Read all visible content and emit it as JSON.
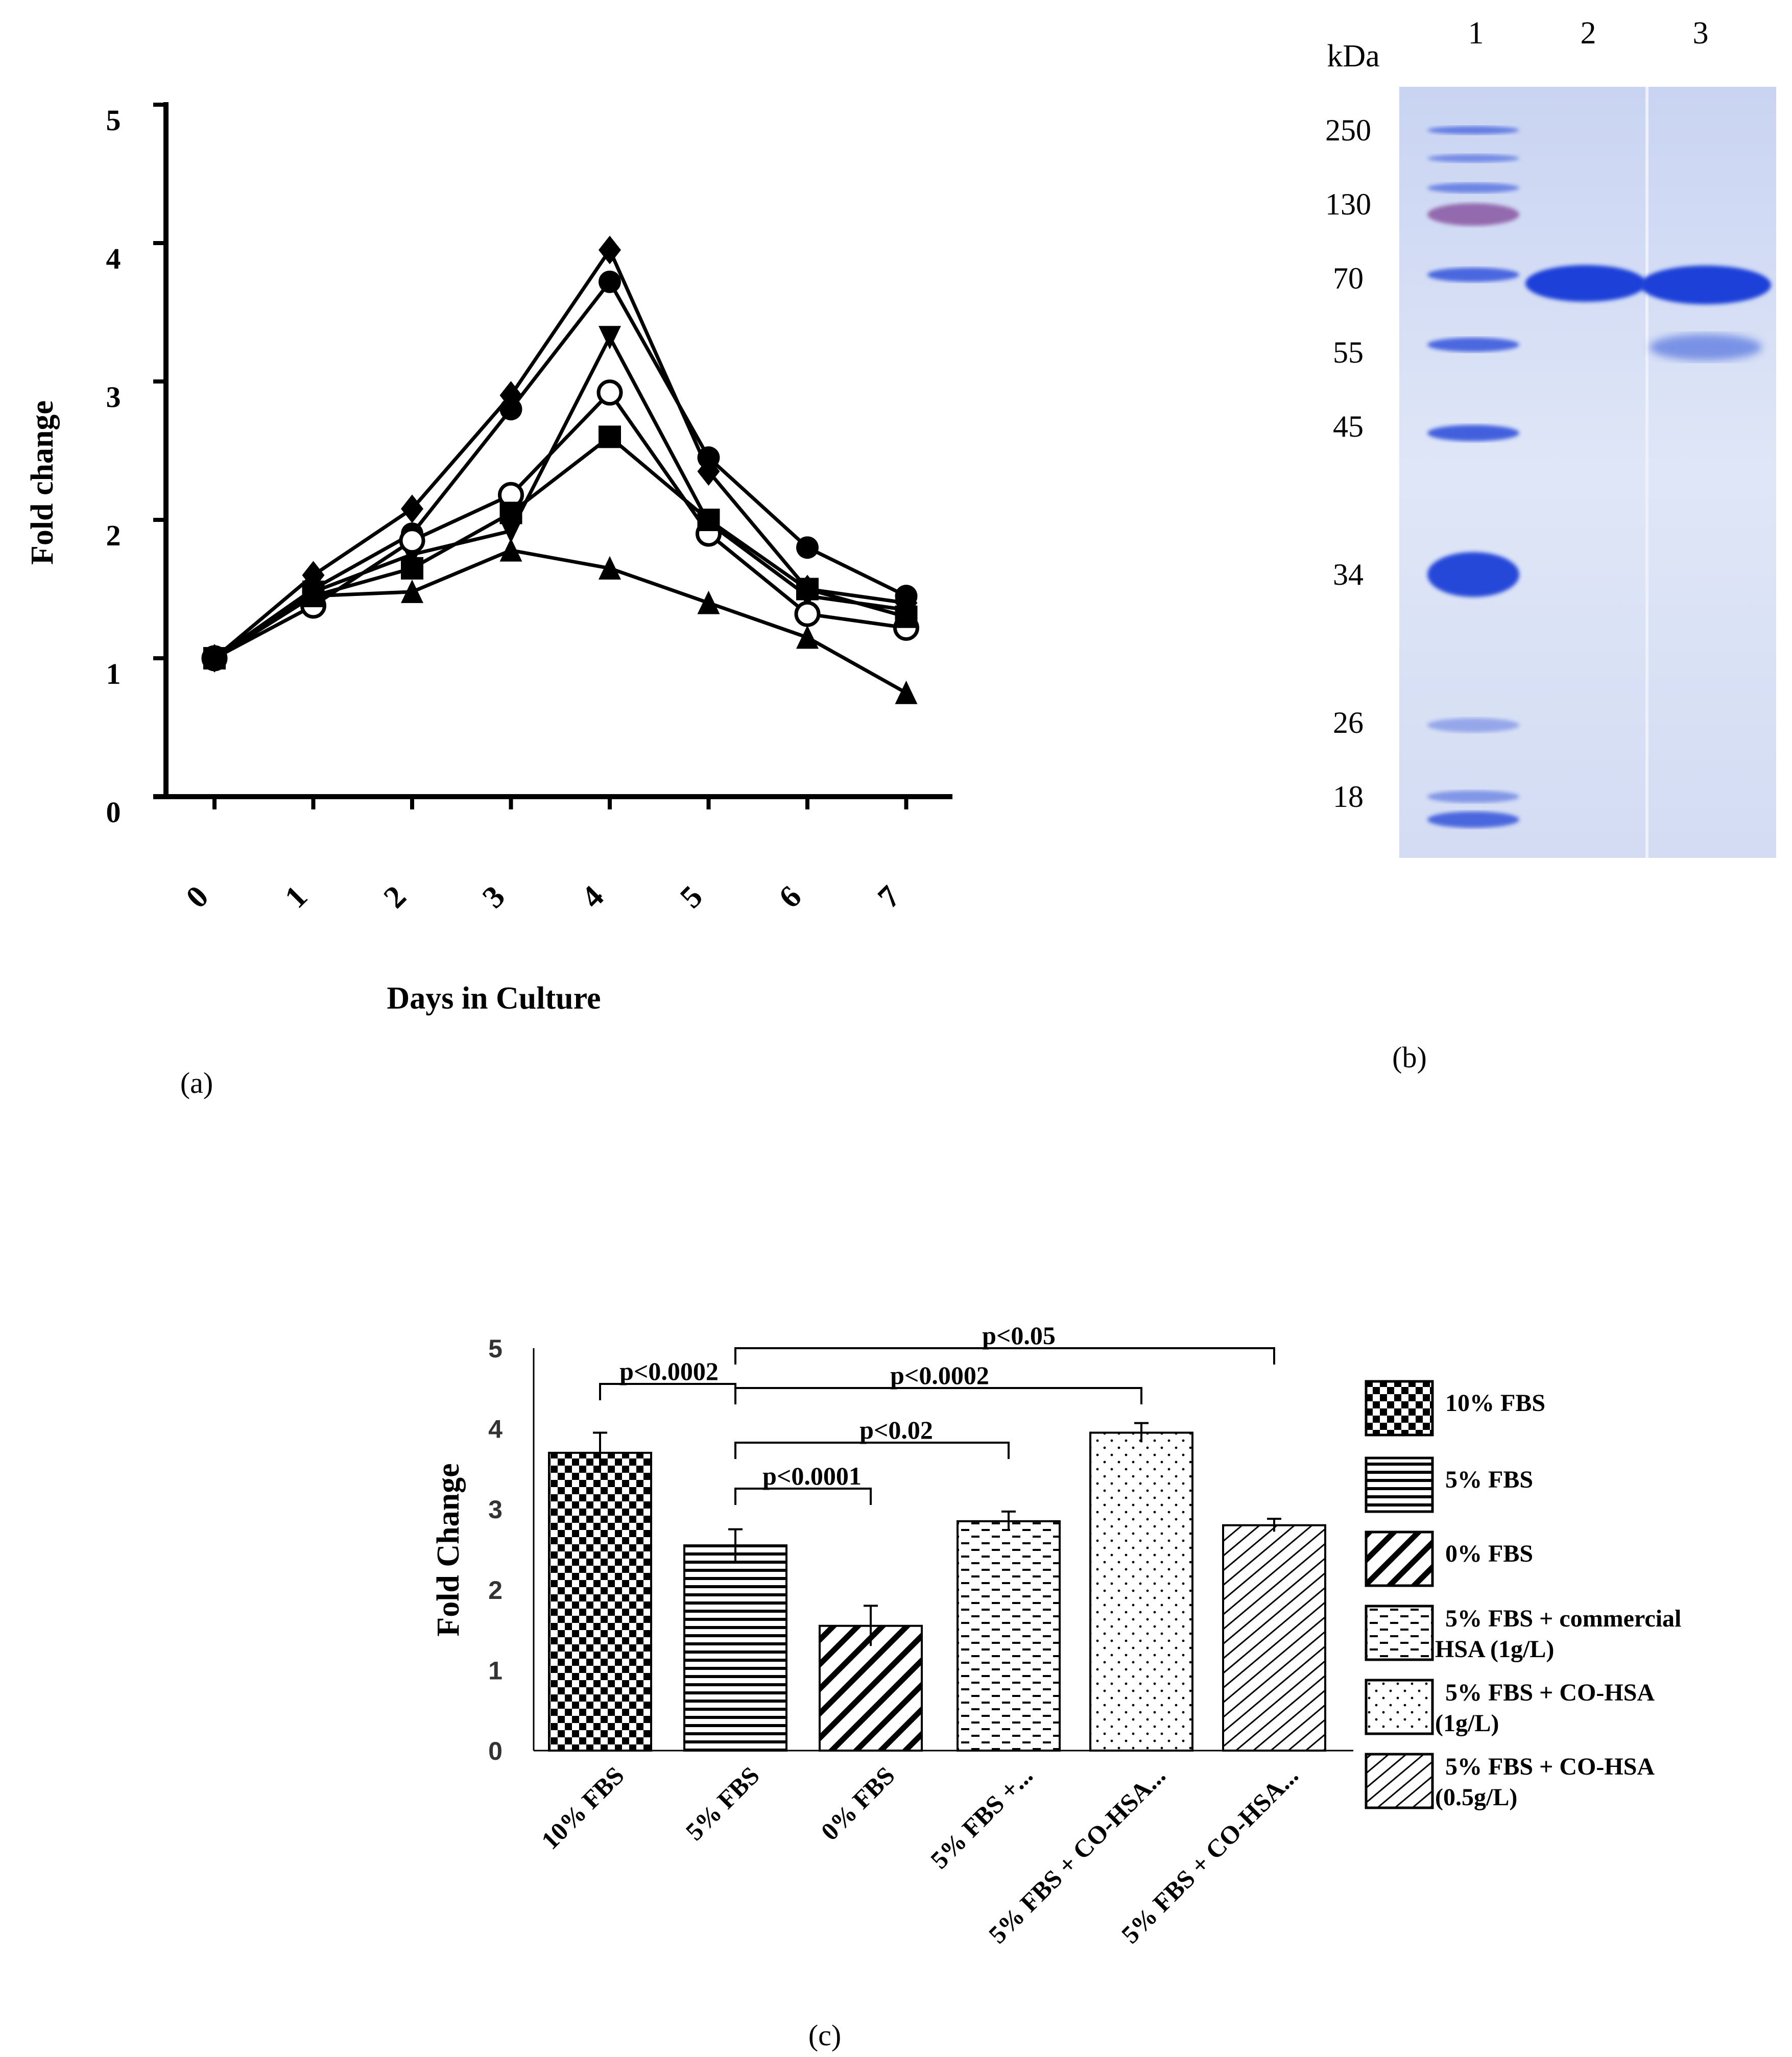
{
  "panel_labels": {
    "a": "(a)",
    "b": "(b)",
    "c": "(c)"
  },
  "chart_data": [
    {
      "type": "line",
      "panel": "a",
      "xlabel": "Days in Culture",
      "ylabel": "Fold change",
      "x": [
        0,
        1,
        2,
        3,
        4,
        5,
        6,
        7
      ],
      "xticks": [
        "0",
        "1",
        "2",
        "3",
        "4",
        "5",
        "6",
        "7"
      ],
      "yticks": [
        "0",
        "1",
        "2",
        "3",
        "4",
        "5"
      ],
      "ylim": [
        0,
        5
      ],
      "grid": false,
      "legend": "none",
      "series": [
        {
          "marker": "diamond-filled",
          "values": [
            1.0,
            1.6,
            2.08,
            2.9,
            3.95,
            2.35,
            1.5,
            1.4
          ]
        },
        {
          "marker": "circle-filled",
          "values": [
            1.0,
            1.5,
            1.9,
            2.8,
            3.72,
            2.45,
            1.8,
            1.45
          ]
        },
        {
          "marker": "triangle-down",
          "values": [
            1.0,
            1.48,
            1.75,
            1.92,
            3.32,
            1.98,
            1.45,
            1.35
          ]
        },
        {
          "marker": "circle-open",
          "values": [
            1.0,
            1.38,
            1.85,
            2.18,
            2.92,
            1.9,
            1.32,
            1.22
          ]
        },
        {
          "marker": "square-filled",
          "values": [
            1.0,
            1.45,
            1.65,
            2.05,
            2.6,
            2.0,
            1.5,
            1.3
          ]
        },
        {
          "marker": "triangle-up",
          "values": [
            1.0,
            1.45,
            1.48,
            1.78,
            1.65,
            1.4,
            1.15,
            0.75
          ]
        }
      ]
    },
    {
      "type": "bar",
      "panel": "c",
      "ylabel": "Fold Change",
      "ylim": [
        0,
        5
      ],
      "yticks": [
        "0",
        "1",
        "2",
        "3",
        "4",
        "5"
      ],
      "categories": [
        "10% FBS",
        "5% FBS",
        "0% FBS",
        "5% FBS +...",
        "5% FBS + CO-HSA...",
        "5% FBS + CO-HSA..."
      ],
      "values": [
        3.7,
        2.55,
        1.55,
        2.85,
        3.95,
        2.8
      ],
      "errors": [
        0.25,
        0.2,
        0.25,
        0.12,
        0.12,
        0.08
      ],
      "patterns": [
        "checker",
        "hlines",
        "diag",
        "dashes",
        "dots",
        "hatch"
      ],
      "legend": [
        {
          "label": "10% FBS",
          "pattern": "checker"
        },
        {
          "label": "5% FBS",
          "pattern": "hlines"
        },
        {
          "label": "0% FBS",
          "pattern": "diag"
        },
        {
          "label": "5% FBS + commercial HSA (1g/L)",
          "line1": "5% FBS + commercial",
          "line2": "HSA (1g/L)",
          "pattern": "dashes"
        },
        {
          "label": "5% FBS + CO-HSA (1g/L)",
          "line1": "5% FBS + CO-HSA",
          "line2": "(1g/L)",
          "pattern": "dots"
        },
        {
          "label": "5% FBS + CO-HSA (0.5g/L)",
          "line1": "5% FBS + CO-HSA",
          "line2": "(0.5g/L)",
          "pattern": "hatch"
        }
      ],
      "comparisons": [
        {
          "from": 0,
          "to": 1,
          "label": "p<0.0002"
        },
        {
          "from": 1,
          "to": 2,
          "label": "p<0.0001"
        },
        {
          "from": 1,
          "to": 3,
          "label": "p<0.02"
        },
        {
          "from": 1,
          "to": 4,
          "label": "p<0.0002"
        },
        {
          "from": 1,
          "to": 5,
          "label": "p<0.05"
        }
      ],
      "legend_placement": "right"
    }
  ],
  "gel": {
    "unit_label": "kDa",
    "lane_labels": [
      "1",
      "2",
      "3"
    ],
    "markers": [
      "250",
      "130",
      "70",
      "55",
      "45",
      "34",
      "26",
      "18"
    ],
    "colors": {
      "background": "#dde4f5",
      "band": "#1c3fd8",
      "band_light": "#5a78e0",
      "marker_130": "#7a3a90"
    }
  }
}
